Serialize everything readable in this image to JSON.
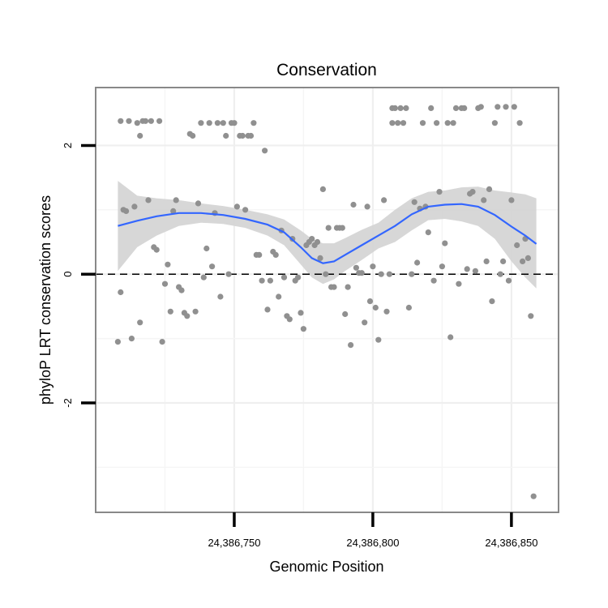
{
  "chart_data": {
    "type": "scatter",
    "title": "Conservation",
    "xlabel": "Genomic Position",
    "ylabel": "phyloP LRT conservation scores",
    "xlim": [
      24386700,
      24386867
    ],
    "ylim": [
      -3.7,
      2.9
    ],
    "x_ticks": [
      24386750,
      24386800,
      24386850
    ],
    "x_tick_labels": [
      "24,386,750",
      "24,386,800",
      "24,386,850"
    ],
    "y_ticks": [
      -2,
      0,
      2
    ],
    "y_tick_labels": [
      "-2",
      "0",
      "2"
    ],
    "grid": true,
    "reference_line": {
      "y": 0,
      "style": "dashed"
    },
    "colors": {
      "points": "#909090",
      "smooth_line": "#3366ff",
      "ribbon": "#d3d3d3",
      "panel_border": "#888888"
    },
    "points": [
      [
        24386708,
        -1.05
      ],
      [
        24386709,
        -0.28
      ],
      [
        24386709,
        2.38
      ],
      [
        24386710,
        1.0
      ],
      [
        24386711,
        0.98
      ],
      [
        24386712,
        2.38
      ],
      [
        24386713,
        -1.0
      ],
      [
        24386714,
        1.05
      ],
      [
        24386715,
        2.35
      ],
      [
        24386716,
        -0.75
      ],
      [
        24386716,
        2.15
      ],
      [
        24386717,
        2.38
      ],
      [
        24386718,
        2.38
      ],
      [
        24386719,
        1.15
      ],
      [
        24386720,
        2.38
      ],
      [
        24386721,
        0.42
      ],
      [
        24386722,
        0.38
      ],
      [
        24386723,
        2.38
      ],
      [
        24386724,
        -1.05
      ],
      [
        24386725,
        -0.15
      ],
      [
        24386726,
        0.15
      ],
      [
        24386727,
        -0.58
      ],
      [
        24386728,
        0.98
      ],
      [
        24386729,
        1.15
      ],
      [
        24386730,
        -0.2
      ],
      [
        24386731,
        -0.25
      ],
      [
        24386732,
        -0.6
      ],
      [
        24386733,
        -0.65
      ],
      [
        24386734,
        2.18
      ],
      [
        24386735,
        2.15
      ],
      [
        24386736,
        -0.58
      ],
      [
        24386737,
        1.1
      ],
      [
        24386738,
        2.35
      ],
      [
        24386739,
        -0.05
      ],
      [
        24386740,
        0.4
      ],
      [
        24386741,
        2.35
      ],
      [
        24386742,
        0.12
      ],
      [
        24386743,
        0.95
      ],
      [
        24386744,
        2.35
      ],
      [
        24386745,
        -0.35
      ],
      [
        24386746,
        2.35
      ],
      [
        24386747,
        2.15
      ],
      [
        24386748,
        0.0
      ],
      [
        24386749,
        2.35
      ],
      [
        24386750,
        2.35
      ],
      [
        24386751,
        1.05
      ],
      [
        24386752,
        2.15
      ],
      [
        24386753,
        2.15
      ],
      [
        24386754,
        1.0
      ],
      [
        24386755,
        2.15
      ],
      [
        24386756,
        2.15
      ],
      [
        24386757,
        2.35
      ],
      [
        24386758,
        0.3
      ],
      [
        24386759,
        0.3
      ],
      [
        24386760,
        -0.1
      ],
      [
        24386761,
        1.92
      ],
      [
        24386762,
        -0.55
      ],
      [
        24386763,
        -0.1
      ],
      [
        24386764,
        0.35
      ],
      [
        24386765,
        0.3
      ],
      [
        24386766,
        -0.35
      ],
      [
        24386767,
        0.68
      ],
      [
        24386768,
        -0.05
      ],
      [
        24386769,
        -0.65
      ],
      [
        24386770,
        -0.7
      ],
      [
        24386771,
        0.55
      ],
      [
        24386772,
        -0.1
      ],
      [
        24386773,
        -0.05
      ],
      [
        24386774,
        -0.6
      ],
      [
        24386775,
        -0.85
      ],
      [
        24386776,
        0.45
      ],
      [
        24386777,
        0.5
      ],
      [
        24386778,
        0.55
      ],
      [
        24386779,
        0.45
      ],
      [
        24386780,
        0.5
      ],
      [
        24386781,
        0.25
      ],
      [
        24386782,
        1.32
      ],
      [
        24386783,
        0.0
      ],
      [
        24386784,
        0.72
      ],
      [
        24386785,
        -0.2
      ],
      [
        24386786,
        -0.2
      ],
      [
        24386787,
        0.72
      ],
      [
        24386788,
        0.72
      ],
      [
        24386789,
        0.72
      ],
      [
        24386790,
        -0.62
      ],
      [
        24386791,
        -0.2
      ],
      [
        24386792,
        -1.1
      ],
      [
        24386793,
        1.08
      ],
      [
        24386794,
        0.1
      ],
      [
        24386795,
        0.02
      ],
      [
        24386796,
        0.02
      ],
      [
        24386797,
        -0.75
      ],
      [
        24386798,
        1.05
      ],
      [
        24386799,
        -0.42
      ],
      [
        24386800,
        0.12
      ],
      [
        24386801,
        -0.52
      ],
      [
        24386802,
        -1.02
      ],
      [
        24386803,
        0.0
      ],
      [
        24386804,
        1.15
      ],
      [
        24386805,
        -0.58
      ],
      [
        24386806,
        0.0
      ],
      [
        24386807,
        2.58
      ],
      [
        24386807,
        2.35
      ],
      [
        24386808,
        2.58
      ],
      [
        24386809,
        2.35
      ],
      [
        24386810,
        2.58
      ],
      [
        24386811,
        2.35
      ],
      [
        24386812,
        2.58
      ],
      [
        24386813,
        -0.52
      ],
      [
        24386814,
        0.0
      ],
      [
        24386815,
        1.12
      ],
      [
        24386816,
        0.18
      ],
      [
        24386817,
        1.02
      ],
      [
        24386818,
        2.35
      ],
      [
        24386819,
        1.05
      ],
      [
        24386820,
        0.65
      ],
      [
        24386821,
        2.58
      ],
      [
        24386822,
        -0.1
      ],
      [
        24386823,
        2.35
      ],
      [
        24386824,
        1.28
      ],
      [
        24386825,
        0.12
      ],
      [
        24386826,
        0.48
      ],
      [
        24386827,
        2.35
      ],
      [
        24386828,
        -0.98
      ],
      [
        24386829,
        2.35
      ],
      [
        24386830,
        2.58
      ],
      [
        24386831,
        -0.15
      ],
      [
        24386832,
        2.58
      ],
      [
        24386833,
        2.58
      ],
      [
        24386834,
        0.08
      ],
      [
        24386835,
        1.25
      ],
      [
        24386836,
        1.28
      ],
      [
        24386837,
        0.05
      ],
      [
        24386838,
        2.58
      ],
      [
        24386839,
        2.6
      ],
      [
        24386840,
        1.15
      ],
      [
        24386841,
        0.2
      ],
      [
        24386842,
        1.32
      ],
      [
        24386843,
        -0.42
      ],
      [
        24386844,
        2.35
      ],
      [
        24386845,
        2.6
      ],
      [
        24386846,
        0.0
      ],
      [
        24386847,
        0.2
      ],
      [
        24386848,
        2.6
      ],
      [
        24386849,
        -0.1
      ],
      [
        24386850,
        1.15
      ],
      [
        24386851,
        2.6
      ],
      [
        24386852,
        0.45
      ],
      [
        24386853,
        2.35
      ],
      [
        24386854,
        0.2
      ],
      [
        24386855,
        0.55
      ],
      [
        24386856,
        0.25
      ],
      [
        24386857,
        -0.65
      ],
      [
        24386858,
        -3.45
      ]
    ],
    "smooth": {
      "x": [
        24386708,
        24386715,
        24386722,
        24386730,
        24386738,
        24386746,
        24386754,
        24386762,
        24386768,
        24386774,
        24386778,
        24386782,
        24386786,
        24386790,
        24386796,
        24386802,
        24386808,
        24386814,
        24386820,
        24386826,
        24386832,
        24386838,
        24386844,
        24386850,
        24386855,
        24386859
      ],
      "y": [
        0.75,
        0.83,
        0.9,
        0.95,
        0.95,
        0.92,
        0.86,
        0.77,
        0.65,
        0.42,
        0.25,
        0.17,
        0.2,
        0.3,
        0.45,
        0.6,
        0.75,
        0.93,
        1.05,
        1.08,
        1.09,
        1.05,
        0.92,
        0.74,
        0.6,
        0.47
      ],
      "lower": [
        0.05,
        0.42,
        0.6,
        0.75,
        0.8,
        0.78,
        0.72,
        0.6,
        0.45,
        0.15,
        -0.05,
        -0.15,
        -0.08,
        0.05,
        0.22,
        0.4,
        0.5,
        0.68,
        0.84,
        0.86,
        0.82,
        0.75,
        0.55,
        0.2,
        -0.05,
        -0.22
      ],
      "upper": [
        1.45,
        1.22,
        1.18,
        1.15,
        1.1,
        1.06,
        1.0,
        0.93,
        0.85,
        0.68,
        0.55,
        0.48,
        0.48,
        0.56,
        0.69,
        0.8,
        1.0,
        1.18,
        1.28,
        1.3,
        1.35,
        1.36,
        1.3,
        1.27,
        1.24,
        1.18
      ]
    }
  }
}
